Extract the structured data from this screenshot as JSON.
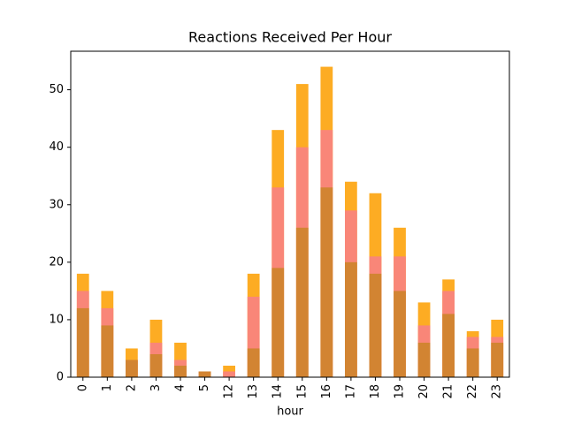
{
  "chart_data": {
    "type": "bar",
    "title": "Reactions Received Per Hour",
    "x_label": "hour",
    "categories": [
      "0",
      "1",
      "2",
      "3",
      "4",
      "5",
      "12",
      "13",
      "14",
      "15",
      "16",
      "17",
      "18",
      "19",
      "20",
      "21",
      "22",
      "23"
    ],
    "series": [
      {
        "color": "#fdac23",
        "values": [
          18,
          15,
          5,
          10,
          6,
          1,
          2,
          18,
          43,
          51,
          54,
          34,
          32,
          26,
          13,
          17,
          8,
          10
        ]
      },
      {
        "color": "#f98678",
        "values": [
          15,
          12,
          3,
          6,
          3,
          1,
          1,
          14,
          33,
          40,
          43,
          29,
          21,
          21,
          9,
          15,
          7,
          7
        ]
      },
      {
        "color": "#d28432",
        "values": [
          12,
          9,
          3,
          4,
          2,
          1,
          0,
          5,
          19,
          26,
          33,
          20,
          18,
          15,
          6,
          11,
          5,
          6
        ]
      }
    ],
    "ylim": [
      0,
      56.7
    ],
    "yticks": [
      0,
      10,
      20,
      30,
      40,
      50
    ]
  }
}
